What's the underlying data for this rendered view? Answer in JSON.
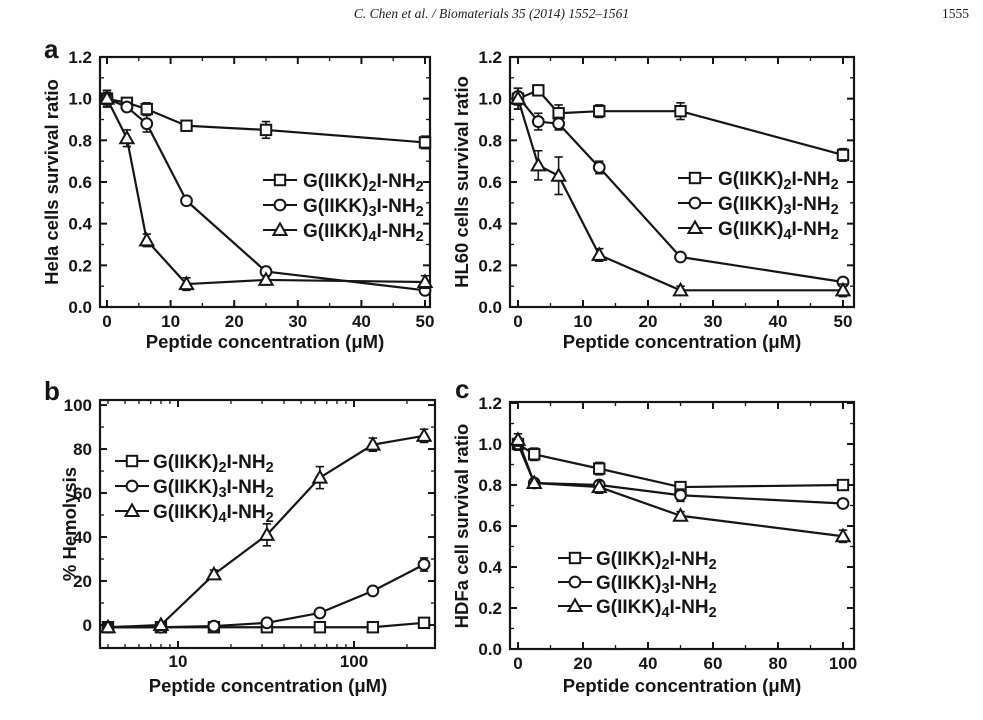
{
  "page": {
    "header": {
      "citation": "C. Chen et al. / Biomaterials 35 (2014) 1552–1561",
      "page_number": "1555"
    },
    "ink_color": "#151515",
    "background_color": "#ffffff"
  },
  "chart_data": [
    {
      "id": "hela",
      "type": "line",
      "panel_label": "a",
      "xlabel": "Peptide concentration (μM)",
      "ylabel": "Hela cells survival ratio",
      "xscale": "linear",
      "x_anchor": [
        0,
        50
      ],
      "ylim": [
        0,
        1.2
      ],
      "xticks": {
        "values": [
          0,
          10,
          20,
          30,
          40,
          50
        ],
        "labels": [
          "0",
          "10",
          "20",
          "30",
          "40",
          "50"
        ],
        "minor": [
          5,
          15,
          25,
          35,
          45
        ]
      },
      "yticks": {
        "values": [
          0,
          0.2,
          0.4,
          0.6,
          0.8,
          1.0,
          1.2
        ],
        "labels": [
          "0.0",
          "0.2",
          "0.4",
          "0.6",
          "0.8",
          "1.0",
          "1.2"
        ],
        "minor": [
          0.1,
          0.3,
          0.5,
          0.7,
          0.9,
          1.1
        ]
      },
      "legend_position": "middle-right",
      "x": [
        0,
        3.125,
        6.25,
        12.5,
        25,
        50
      ],
      "series": [
        {
          "marker": "square",
          "label_parts": [
            "G(IIKK)",
            "2",
            "I-NH",
            "2"
          ],
          "values": [
            1.0,
            0.98,
            0.95,
            0.87,
            0.85,
            0.79
          ],
          "errors": [
            0.03,
            0.02,
            0.03,
            0.02,
            0.04,
            0.03
          ]
        },
        {
          "marker": "circle",
          "label_parts": [
            "G(IIKK)",
            "3",
            "I-NH",
            "2"
          ],
          "values": [
            1.0,
            0.96,
            0.88,
            0.51,
            0.17,
            0.08
          ],
          "errors": [
            0.04,
            0.02,
            0.04,
            0.02,
            0.02,
            0.02
          ]
        },
        {
          "marker": "triangle",
          "label_parts": [
            "G(IIKK)",
            "4",
            "I-NH",
            "2"
          ],
          "values": [
            1.0,
            0.81,
            0.32,
            0.11,
            0.13,
            0.12
          ],
          "errors": [
            0.04,
            0.04,
            0.03,
            0.03,
            0.02,
            0.03
          ]
        }
      ]
    },
    {
      "id": "hl60",
      "type": "line",
      "panel_label": "",
      "xlabel": "Peptide concentration (μM)",
      "ylabel": "HL60 cells survival ratio",
      "xscale": "linear",
      "x_anchor": [
        0,
        50
      ],
      "ylim": [
        0,
        1.2
      ],
      "xticks": {
        "values": [
          0,
          10,
          20,
          30,
          40,
          50
        ],
        "labels": [
          "0",
          "10",
          "20",
          "30",
          "40",
          "50"
        ],
        "minor": [
          5,
          15,
          25,
          35,
          45
        ]
      },
      "yticks": {
        "values": [
          0,
          0.2,
          0.4,
          0.6,
          0.8,
          1.0,
          1.2
        ],
        "labels": [
          "0.0",
          "0.2",
          "0.4",
          "0.6",
          "0.8",
          "1.0",
          "1.2"
        ],
        "minor": [
          0.1,
          0.3,
          0.5,
          0.7,
          0.9,
          1.1
        ]
      },
      "legend_position": "middle-right",
      "x": [
        0,
        3.125,
        6.25,
        12.5,
        25,
        50
      ],
      "series": [
        {
          "marker": "square",
          "label_parts": [
            "G(IIKK)",
            "2",
            "I-NH",
            "2"
          ],
          "values": [
            1.0,
            1.04,
            0.93,
            0.94,
            0.94,
            0.73
          ],
          "errors": [
            0.05,
            0.02,
            0.04,
            0.03,
            0.04,
            0.03
          ]
        },
        {
          "marker": "circle",
          "label_parts": [
            "G(IIKK)",
            "3",
            "I-NH",
            "2"
          ],
          "values": [
            1.01,
            0.89,
            0.88,
            0.67,
            0.24,
            0.12
          ],
          "errors": [
            0.04,
            0.04,
            0.03,
            0.03,
            0.02,
            0.02
          ]
        },
        {
          "marker": "triangle",
          "label_parts": [
            "G(IIKK)",
            "4",
            "I-NH",
            "2"
          ],
          "values": [
            1.0,
            0.68,
            0.63,
            0.25,
            0.08,
            0.08
          ],
          "errors": [
            0.05,
            0.07,
            0.09,
            0.03,
            0.02,
            0.03
          ]
        }
      ]
    },
    {
      "id": "hemolysis",
      "type": "line",
      "panel_label": "b",
      "xlabel": "Peptide concentration (μM)",
      "ylabel": "% Hemolysis",
      "xscale": "log",
      "x_anchor": [
        10,
        100
      ],
      "ylim": [
        -10.45,
        102.3
      ],
      "xticks": {
        "values": [
          10,
          100
        ],
        "labels": [
          "10",
          "100"
        ],
        "minor": [
          4,
          5,
          6,
          7,
          8,
          9,
          20,
          30,
          40,
          50,
          60,
          70,
          80,
          90,
          200
        ]
      },
      "yticks": {
        "values": [
          0,
          20,
          40,
          60,
          80,
          100
        ],
        "labels": [
          "0",
          "20",
          "40",
          "60",
          "80",
          "100"
        ],
        "minor": [
          10,
          30,
          50,
          70,
          90
        ]
      },
      "legend_position": "top-left",
      "x": [
        4,
        8,
        16,
        32,
        64,
        128,
        250
      ],
      "series": [
        {
          "marker": "square",
          "label_parts": [
            "G(IIKK)",
            "2",
            "I-NH",
            "2"
          ],
          "values": [
            -1,
            -1,
            -1,
            -1,
            -1,
            -1,
            1
          ],
          "errors": [
            1,
            1,
            1,
            2,
            1,
            2,
            2
          ]
        },
        {
          "marker": "circle",
          "label_parts": [
            "G(IIKK)",
            "3",
            "I-NH",
            "2"
          ],
          "values": [
            -1,
            -1,
            -0.5,
            1,
            5.5,
            15.5,
            27.5
          ],
          "errors": [
            1,
            1,
            1,
            2,
            1.5,
            1.5,
            3
          ]
        },
        {
          "marker": "triangle",
          "label_parts": [
            "G(IIKK)",
            "4",
            "I-NH",
            "2"
          ],
          "values": [
            -1,
            0,
            23,
            41,
            67,
            82,
            86
          ],
          "errors": [
            1,
            1,
            2,
            5,
            5,
            3,
            3
          ]
        }
      ]
    },
    {
      "id": "hdfa",
      "type": "line",
      "panel_label": "c",
      "xlabel": "Peptide concentration (μM)",
      "ylabel": "HDFa cell survival ratio",
      "xscale": "linear",
      "x_anchor": [
        0,
        100
      ],
      "ylim": [
        0,
        1.205
      ],
      "xticks": {
        "values": [
          0,
          20,
          40,
          60,
          80,
          100
        ],
        "labels": [
          "0",
          "20",
          "40",
          "60",
          "80",
          "100"
        ],
        "minor": [
          10,
          30,
          50,
          70,
          90
        ]
      },
      "yticks": {
        "values": [
          0,
          0.2,
          0.4,
          0.6,
          0.8,
          1.0,
          1.2
        ],
        "labels": [
          "0.0",
          "0.2",
          "0.4",
          "0.6",
          "0.8",
          "1.0",
          "1.2"
        ],
        "minor": [
          0.1,
          0.3,
          0.5,
          0.7,
          0.9,
          1.1
        ]
      },
      "legend_position": "bottom-left",
      "x": [
        0,
        5,
        25,
        50,
        100
      ],
      "series": [
        {
          "marker": "square",
          "label_parts": [
            "G(IIKK)",
            "2",
            "I-NH",
            "2"
          ],
          "values": [
            1.0,
            0.95,
            0.88,
            0.79,
            0.8
          ],
          "errors": [
            0.02,
            0.03,
            0.03,
            0.02,
            0.02
          ]
        },
        {
          "marker": "circle",
          "label_parts": [
            "G(IIKK)",
            "3",
            "I-NH",
            "2"
          ],
          "values": [
            1.0,
            0.81,
            0.8,
            0.75,
            0.71
          ],
          "errors": [
            0.03,
            0.02,
            0.02,
            0.03,
            0.02
          ]
        },
        {
          "marker": "triangle",
          "label_parts": [
            "G(IIKK)",
            "4",
            "I-NH",
            "2"
          ],
          "values": [
            1.02,
            0.81,
            0.79,
            0.65,
            0.55
          ],
          "errors": [
            0.03,
            0.02,
            0.03,
            0.02,
            0.03
          ]
        }
      ]
    }
  ]
}
